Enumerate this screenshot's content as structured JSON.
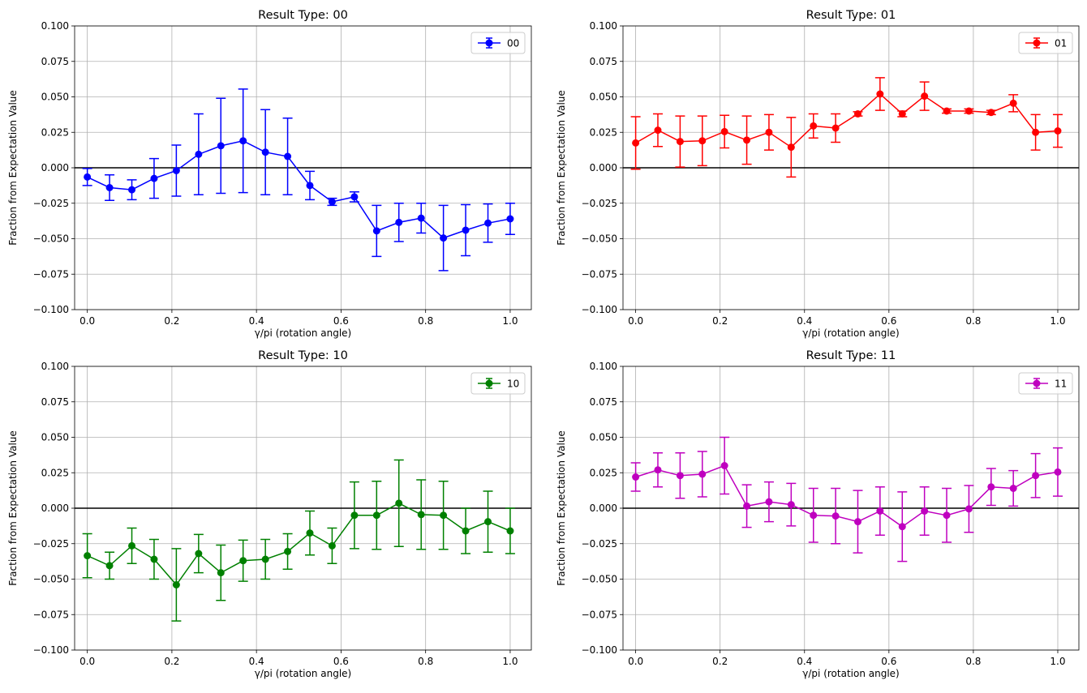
{
  "figure": {
    "background": "#ffffff"
  },
  "chart_data": [
    {
      "type": "line",
      "title": "Result Type: 00",
      "xlabel": "γ/pi  (rotation angle)",
      "ylabel": "Fraction from Expectation Value",
      "xlim": [
        -0.03,
        1.05
      ],
      "ylim": [
        -0.1,
        0.1
      ],
      "xticks": [
        "0.0",
        "0.2",
        "0.4",
        "0.6",
        "0.8",
        "1.0"
      ],
      "xtick_values": [
        0.0,
        0.2,
        0.4,
        0.6,
        0.8,
        1.0
      ],
      "yticks": [
        "−0.100",
        "−0.075",
        "−0.050",
        "−0.025",
        "0.000",
        "0.025",
        "0.050",
        "0.075",
        "0.100"
      ],
      "ytick_values": [
        -0.1,
        -0.075,
        -0.05,
        -0.025,
        0.0,
        0.025,
        0.05,
        0.075,
        0.1
      ],
      "grid": true,
      "zero_line": true,
      "legend_position": "upper-right",
      "series": [
        {
          "name": "00",
          "color": "#0000ff",
          "marker": "circle",
          "x": [
            0.0,
            0.0526,
            0.1053,
            0.1579,
            0.2105,
            0.2632,
            0.3158,
            0.3684,
            0.4211,
            0.4737,
            0.5263,
            0.5789,
            0.6316,
            0.6842,
            0.7368,
            0.7895,
            0.8421,
            0.8947,
            0.9474,
            1.0
          ],
          "y": [
            -0.0065,
            -0.014,
            -0.0155,
            -0.0075,
            -0.002,
            0.0095,
            0.0155,
            0.019,
            0.011,
            0.008,
            -0.0125,
            -0.024,
            -0.0205,
            -0.0445,
            -0.0385,
            -0.0355,
            -0.0495,
            -0.044,
            -0.039,
            -0.036
          ],
          "err": [
            0.006,
            0.009,
            0.007,
            0.014,
            0.018,
            0.0285,
            0.0335,
            0.0365,
            0.03,
            0.027,
            0.01,
            0.0025,
            0.0035,
            0.018,
            0.0135,
            0.0105,
            0.023,
            0.018,
            0.0135,
            0.011
          ]
        }
      ]
    },
    {
      "type": "line",
      "title": "Result Type: 01",
      "xlabel": "γ/pi  (rotation angle)",
      "ylabel": "Fraction from Expectation Value",
      "xlim": [
        -0.03,
        1.05
      ],
      "ylim": [
        -0.1,
        0.1
      ],
      "xticks": [
        "0.0",
        "0.2",
        "0.4",
        "0.6",
        "0.8",
        "1.0"
      ],
      "xtick_values": [
        0.0,
        0.2,
        0.4,
        0.6,
        0.8,
        1.0
      ],
      "yticks": [
        "−0.100",
        "−0.075",
        "−0.050",
        "−0.025",
        "0.000",
        "0.025",
        "0.050",
        "0.075",
        "0.100"
      ],
      "ytick_values": [
        -0.1,
        -0.075,
        -0.05,
        -0.025,
        0.0,
        0.025,
        0.05,
        0.075,
        0.1
      ],
      "grid": true,
      "zero_line": true,
      "legend_position": "upper-right",
      "series": [
        {
          "name": "01",
          "color": "#ff0000",
          "marker": "circle",
          "x": [
            0.0,
            0.0526,
            0.1053,
            0.1579,
            0.2105,
            0.2632,
            0.3158,
            0.3684,
            0.4211,
            0.4737,
            0.5263,
            0.5789,
            0.6316,
            0.6842,
            0.7368,
            0.7895,
            0.8421,
            0.8947,
            0.9474,
            1.0
          ],
          "y": [
            0.0175,
            0.0265,
            0.0185,
            0.019,
            0.0255,
            0.0195,
            0.025,
            0.0145,
            0.0295,
            0.028,
            0.038,
            0.052,
            0.038,
            0.0505,
            0.04,
            0.04,
            0.039,
            0.0455,
            0.025,
            0.026
          ],
          "err": [
            0.0185,
            0.0115,
            0.018,
            0.0175,
            0.0115,
            0.017,
            0.0125,
            0.021,
            0.0085,
            0.01,
            0.0015,
            0.0115,
            0.002,
            0.01,
            0.0015,
            0.0015,
            0.0015,
            0.006,
            0.0125,
            0.0115
          ]
        }
      ]
    },
    {
      "type": "line",
      "title": "Result Type: 10",
      "xlabel": "γ/pi  (rotation angle)",
      "ylabel": "Fraction from Expectation Value",
      "xlim": [
        -0.03,
        1.05
      ],
      "ylim": [
        -0.1,
        0.1
      ],
      "xticks": [
        "0.0",
        "0.2",
        "0.4",
        "0.6",
        "0.8",
        "1.0"
      ],
      "xtick_values": [
        0.0,
        0.2,
        0.4,
        0.6,
        0.8,
        1.0
      ],
      "yticks": [
        "−0.100",
        "−0.075",
        "−0.050",
        "−0.025",
        "0.000",
        "0.025",
        "0.050",
        "0.075",
        "0.100"
      ],
      "ytick_values": [
        -0.1,
        -0.075,
        -0.05,
        -0.025,
        0.0,
        0.025,
        0.05,
        0.075,
        0.1
      ],
      "grid": true,
      "zero_line": true,
      "legend_position": "upper-right",
      "series": [
        {
          "name": "10",
          "color": "#008000",
          "marker": "circle",
          "x": [
            0.0,
            0.0526,
            0.1053,
            0.1579,
            0.2105,
            0.2632,
            0.3158,
            0.3684,
            0.4211,
            0.4737,
            0.5263,
            0.5789,
            0.6316,
            0.6842,
            0.7368,
            0.7895,
            0.8421,
            0.8947,
            0.9474,
            1.0
          ],
          "y": [
            -0.0335,
            -0.0405,
            -0.0265,
            -0.036,
            -0.054,
            -0.032,
            -0.0455,
            -0.037,
            -0.036,
            -0.0305,
            -0.0175,
            -0.0265,
            -0.005,
            -0.005,
            0.0035,
            -0.0045,
            -0.005,
            -0.016,
            -0.0095,
            -0.016
          ],
          "err": [
            0.0155,
            0.0095,
            0.0125,
            0.014,
            0.0255,
            0.0135,
            0.0195,
            0.0145,
            0.014,
            0.0125,
            0.0155,
            0.0125,
            0.0235,
            0.024,
            0.0305,
            0.0245,
            0.024,
            0.016,
            0.0215,
            0.016
          ]
        }
      ]
    },
    {
      "type": "line",
      "title": "Result Type: 11",
      "xlabel": "γ/pi  (rotation angle)",
      "ylabel": "Fraction from Expectation Value",
      "xlim": [
        -0.03,
        1.05
      ],
      "ylim": [
        -0.1,
        0.1
      ],
      "xticks": [
        "0.0",
        "0.2",
        "0.4",
        "0.6",
        "0.8",
        "1.0"
      ],
      "xtick_values": [
        0.0,
        0.2,
        0.4,
        0.6,
        0.8,
        1.0
      ],
      "yticks": [
        "−0.100",
        "−0.075",
        "−0.050",
        "−0.025",
        "0.000",
        "0.025",
        "0.050",
        "0.075",
        "0.100"
      ],
      "ytick_values": [
        -0.1,
        -0.075,
        -0.05,
        -0.025,
        0.0,
        0.025,
        0.05,
        0.075,
        0.1
      ],
      "grid": true,
      "zero_line": true,
      "legend_position": "upper-right",
      "series": [
        {
          "name": "11",
          "color": "#bf00bf",
          "marker": "circle",
          "x": [
            0.0,
            0.0526,
            0.1053,
            0.1579,
            0.2105,
            0.2632,
            0.3158,
            0.3684,
            0.4211,
            0.4737,
            0.5263,
            0.5789,
            0.6316,
            0.6842,
            0.7368,
            0.7895,
            0.8421,
            0.8947,
            0.9474,
            1.0
          ],
          "y": [
            0.022,
            0.027,
            0.023,
            0.024,
            0.03,
            0.0015,
            0.0045,
            0.0025,
            -0.005,
            -0.0055,
            -0.0095,
            -0.002,
            -0.013,
            -0.002,
            -0.005,
            -0.0005,
            0.015,
            0.014,
            0.023,
            0.0255
          ],
          "err": [
            0.01,
            0.012,
            0.016,
            0.016,
            0.02,
            0.015,
            0.014,
            0.015,
            0.019,
            0.0195,
            0.022,
            0.017,
            0.0245,
            0.017,
            0.019,
            0.0165,
            0.013,
            0.0125,
            0.0155,
            0.017
          ]
        }
      ]
    }
  ]
}
